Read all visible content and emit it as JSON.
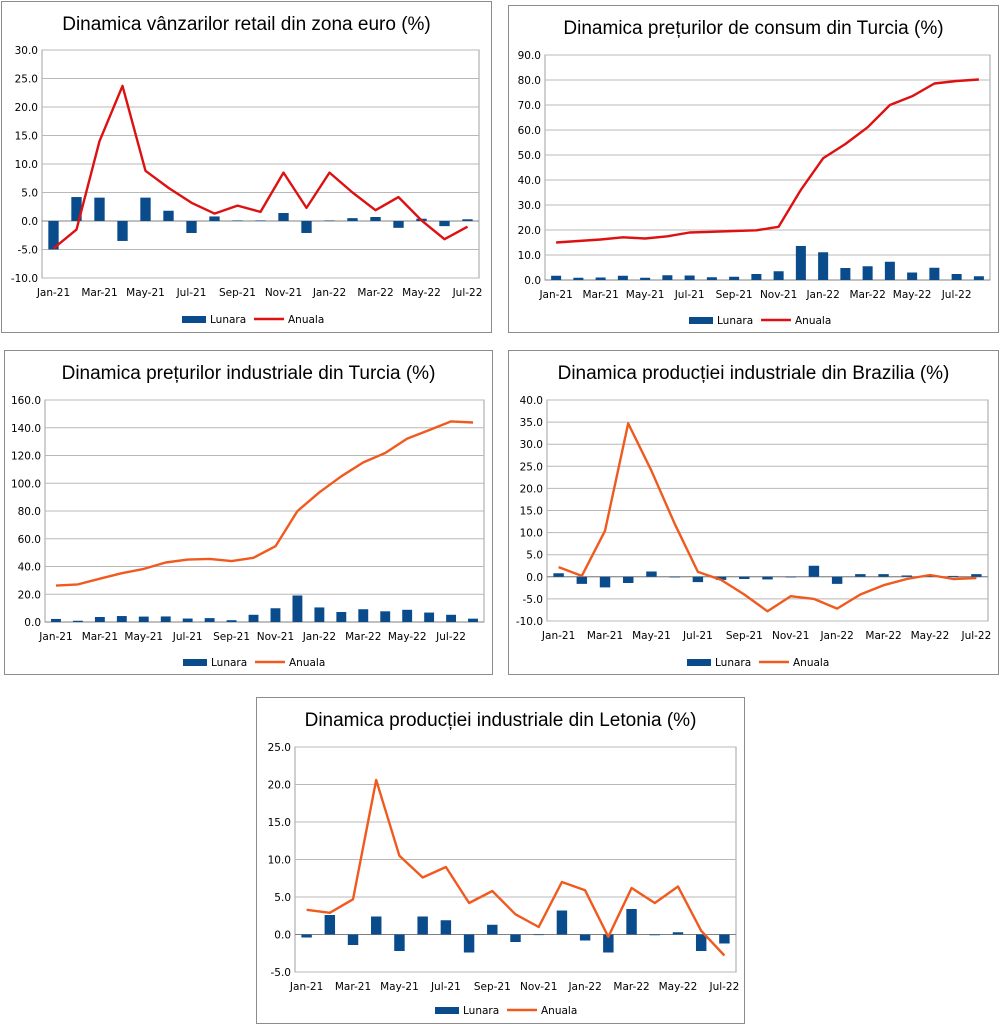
{
  "chart_data": [
    {
      "type": "bar",
      "title": "Dinamica vânzarilor retail din zona euro (%)",
      "line_color": "#dd1111",
      "bar_color": "#0a4b8c",
      "ylim": [
        -10,
        30
      ],
      "yticks": [
        "-10.0",
        "-5.0",
        "0.0",
        "5.0",
        "10.0",
        "15.0",
        "20.0",
        "25.0",
        "30.0"
      ],
      "categories": [
        "Jan-21",
        "Feb-21",
        "Mar-21",
        "Apr-21",
        "May-21",
        "Jun-21",
        "Jul-21",
        "Aug-21",
        "Sep-21",
        "Oct-21",
        "Nov-21",
        "Dec-21",
        "Jan-22",
        "Feb-22",
        "Mar-22",
        "Apr-22",
        "May-22",
        "Jun-22",
        "Jul-22"
      ],
      "xticks": [
        "Jan-21",
        "Mar-21",
        "May-21",
        "Jul-21",
        "Sep-21",
        "Nov-21",
        "Jan-22",
        "Mar-22",
        "May-22",
        "Jul-22"
      ],
      "series": [
        {
          "name": "Lunara",
          "kind": "bar",
          "values": [
            -5.0,
            4.2,
            4.1,
            -3.5,
            4.1,
            1.8,
            -2.1,
            0.8,
            0.1,
            0.1,
            1.4,
            -2.1,
            0.1,
            0.5,
            0.7,
            -1.2,
            0.4,
            -0.9,
            0.3
          ]
        },
        {
          "name": "Anuala",
          "kind": "line",
          "values": [
            -4.8,
            -1.5,
            14.0,
            23.7,
            8.8,
            5.8,
            3.2,
            1.3,
            2.7,
            1.6,
            8.5,
            2.3,
            8.5,
            5.0,
            1.9,
            4.2,
            0.1,
            -3.2,
            -1.0
          ]
        }
      ]
    },
    {
      "type": "bar",
      "title": "Dinamica prețurilor de consum din Turcia (%)",
      "line_color": "#dd1111",
      "bar_color": "#0a4b8c",
      "ylim": [
        0,
        90
      ],
      "yticks": [
        "0.0",
        "10.0",
        "20.0",
        "30.0",
        "40.0",
        "50.0",
        "60.0",
        "70.0",
        "80.0",
        "90.0"
      ],
      "categories": [
        "Jan-21",
        "Feb-21",
        "Mar-21",
        "Apr-21",
        "May-21",
        "Jun-21",
        "Jul-21",
        "Aug-21",
        "Sep-21",
        "Oct-21",
        "Nov-21",
        "Dec-21",
        "Jan-22",
        "Feb-22",
        "Mar-22",
        "Apr-22",
        "May-22",
        "Jun-22",
        "Jul-22",
        "Aug-22"
      ],
      "xticks": [
        "Jan-21",
        "Mar-21",
        "May-21",
        "Jul-21",
        "Sep-21",
        "Nov-21",
        "Jan-22",
        "Mar-22",
        "May-22",
        "Jul-22"
      ],
      "series": [
        {
          "name": "Lunara",
          "kind": "bar",
          "values": [
            1.7,
            0.9,
            1.0,
            1.7,
            0.9,
            1.9,
            1.8,
            1.1,
            1.3,
            2.4,
            3.5,
            13.6,
            11.1,
            4.8,
            5.5,
            7.3,
            3.0,
            4.9,
            2.4,
            1.5
          ]
        },
        {
          "name": "Anuala",
          "kind": "line",
          "values": [
            15.0,
            15.6,
            16.2,
            17.1,
            16.6,
            17.5,
            19.0,
            19.3,
            19.6,
            19.9,
            21.3,
            36.1,
            48.7,
            54.4,
            61.1,
            70.0,
            73.5,
            78.6,
            79.6,
            80.2
          ]
        }
      ]
    },
    {
      "type": "bar",
      "title": "Dinamica prețurilor industriale din Turcia (%)",
      "line_color": "#f05a1e",
      "bar_color": "#0a4b8c",
      "ylim": [
        0,
        160
      ],
      "yticks": [
        "0.0",
        "20.0",
        "40.0",
        "60.0",
        "80.0",
        "100.0",
        "120.0",
        "140.0",
        "160.0"
      ],
      "categories": [
        "Jan-21",
        "Feb-21",
        "Mar-21",
        "Apr-21",
        "May-21",
        "Jun-21",
        "Jul-21",
        "Aug-21",
        "Sep-21",
        "Oct-21",
        "Nov-21",
        "Dec-21",
        "Jan-22",
        "Feb-22",
        "Mar-22",
        "Apr-22",
        "May-22",
        "Jun-22",
        "Jul-22",
        "Aug-22"
      ],
      "xticks": [
        "Jan-21",
        "Mar-21",
        "May-21",
        "Jul-21",
        "Sep-21",
        "Nov-21",
        "Jan-22",
        "Mar-22",
        "May-22",
        "Jul-22"
      ],
      "series": [
        {
          "name": "Lunara",
          "kind": "bar",
          "values": [
            2.2,
            0.9,
            3.6,
            4.3,
            3.9,
            4.0,
            2.5,
            2.8,
            1.3,
            5.2,
            9.9,
            19.1,
            10.5,
            7.2,
            9.2,
            7.7,
            8.8,
            6.8,
            5.2,
            2.4
          ]
        },
        {
          "name": "Anuala",
          "kind": "line",
          "values": [
            26.2,
            27.1,
            31.2,
            35.2,
            38.3,
            42.9,
            45.0,
            45.5,
            43.9,
            46.3,
            54.6,
            79.9,
            93.5,
            105.0,
            115.0,
            121.8,
            132.2,
            138.3,
            144.6,
            143.8
          ]
        }
      ]
    },
    {
      "type": "bar",
      "title": "Dinamica producției industriale din Brazilia (%)",
      "line_color": "#f05a1e",
      "bar_color": "#0a4b8c",
      "ylim": [
        -10,
        40
      ],
      "yticks": [
        "-10.0",
        "-5.0",
        "0.0",
        "5.0",
        "10.0",
        "15.0",
        "20.0",
        "25.0",
        "30.0",
        "35.0",
        "40.0"
      ],
      "categories": [
        "Jan-21",
        "Feb-21",
        "Mar-21",
        "Apr-21",
        "May-21",
        "Jun-21",
        "Jul-21",
        "Aug-21",
        "Sep-21",
        "Oct-21",
        "Nov-21",
        "Dec-21",
        "Jan-22",
        "Feb-22",
        "Mar-22",
        "Apr-22",
        "May-22",
        "Jun-22",
        "Jul-22"
      ],
      "xticks": [
        "Jan-21",
        "Mar-21",
        "May-21",
        "Jul-21",
        "Sep-21",
        "Nov-21",
        "Jan-22",
        "Mar-22",
        "May-22",
        "Jul-22"
      ],
      "series": [
        {
          "name": "Lunara",
          "kind": "bar",
          "values": [
            0.8,
            -1.6,
            -2.4,
            -1.4,
            1.2,
            -0.1,
            -1.2,
            -0.7,
            -0.5,
            -0.6,
            -0.1,
            2.5,
            -1.6,
            0.6,
            0.6,
            0.3,
            0.3,
            0.2,
            0.6
          ]
        },
        {
          "name": "Anuala",
          "kind": "line",
          "values": [
            2.2,
            0.2,
            10.4,
            34.7,
            24.0,
            12.0,
            1.1,
            -0.7,
            -4.0,
            -7.8,
            -4.4,
            -5.0,
            -7.2,
            -4.0,
            -1.9,
            -0.5,
            0.4,
            -0.5,
            -0.3
          ]
        }
      ]
    },
    {
      "type": "bar",
      "title": "Dinamica producției industriale din Letonia (%)",
      "line_color": "#f05a1e",
      "bar_color": "#0a4b8c",
      "ylim": [
        -5,
        25
      ],
      "yticks": [
        "-5.0",
        "0.0",
        "5.0",
        "10.0",
        "15.0",
        "20.0",
        "25.0"
      ],
      "categories": [
        "Jan-21",
        "Feb-21",
        "Mar-21",
        "Apr-21",
        "May-21",
        "Jun-21",
        "Jul-21",
        "Aug-21",
        "Sep-21",
        "Oct-21",
        "Nov-21",
        "Dec-21",
        "Jan-22",
        "Feb-22",
        "Mar-22",
        "Apr-22",
        "May-22",
        "Jun-22",
        "Jul-22"
      ],
      "xticks": [
        "Jan-21",
        "Mar-21",
        "May-21",
        "Jul-21",
        "Sep-21",
        "Nov-21",
        "Jan-22",
        "Mar-22",
        "May-22",
        "Jul-22"
      ],
      "series": [
        {
          "name": "Lunara",
          "kind": "bar",
          "values": [
            -0.4,
            2.6,
            -1.4,
            2.4,
            -2.2,
            2.4,
            1.9,
            -2.4,
            1.3,
            -1.0,
            0.0,
            3.2,
            -0.8,
            -2.4,
            3.4,
            -0.1,
            0.3,
            -2.2,
            -1.2
          ]
        },
        {
          "name": "Anuala",
          "kind": "line",
          "values": [
            3.3,
            2.9,
            4.7,
            20.6,
            10.5,
            7.6,
            9.0,
            4.2,
            5.8,
            2.7,
            1.0,
            7.0,
            5.9,
            -0.3,
            6.2,
            4.2,
            6.4,
            0.5,
            -2.8
          ]
        }
      ]
    }
  ]
}
